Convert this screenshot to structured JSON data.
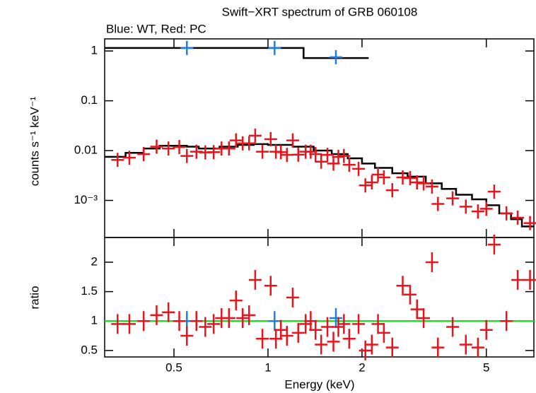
{
  "chart_data": [
    {
      "type": "spectrum",
      "title": "Swift−XRT spectrum of GRB 060108",
      "subtitle": "Blue: WT, Red: PC",
      "y_label": "counts s⁻¹ keV⁻¹",
      "log_x": true,
      "log_y": true,
      "ylim": [
        0.00018,
        1.75
      ],
      "yticks": [
        1,
        0.1,
        0.01,
        {
          "value": 0.001,
          "label": "10⁻³"
        }
      ],
      "series": [
        {
          "color": "#1f7fe0",
          "x": [
            0.55,
            1.05,
            1.65
          ],
          "values": [
            1.15,
            1.15,
            0.75
          ]
        },
        {
          "color": "#e8141c",
          "x": [
            0.33,
            0.36,
            0.4,
            0.44,
            0.48,
            0.52,
            0.55,
            0.59,
            0.63,
            0.67,
            0.71,
            0.75,
            0.79,
            0.83,
            0.87,
            0.91,
            0.96,
            1.02,
            1.06,
            1.1,
            1.15,
            1.2,
            1.25,
            1.32,
            1.37,
            1.42,
            1.48,
            1.55,
            1.62,
            1.68,
            1.75,
            1.82,
            1.95,
            2.05,
            2.15,
            2.25,
            2.35,
            2.5,
            2.7,
            2.85,
            3.0,
            3.15,
            3.35,
            3.5,
            3.9,
            4.3,
            4.7,
            5.0,
            5.3,
            5.8,
            6.3,
            6.9
          ],
          "values": [
            0.0065,
            0.0072,
            0.0085,
            0.012,
            0.011,
            0.0118,
            0.0078,
            0.0095,
            0.0092,
            0.0093,
            0.011,
            0.011,
            0.016,
            0.014,
            0.014,
            0.02,
            0.0095,
            0.017,
            0.0095,
            0.0093,
            0.0082,
            0.016,
            0.0083,
            0.0095,
            0.0095,
            0.0085,
            0.006,
            0.0082,
            0.0055,
            0.0075,
            0.0078,
            0.0052,
            0.0043,
            0.002,
            0.0023,
            0.0033,
            0.0029,
            0.0016,
            0.0029,
            0.0028,
            0.0023,
            0.0022,
            0.0019,
            0.00085,
            0.0011,
            0.00075,
            0.0006,
            0.00068,
            0.0015,
            0.00055,
            0.00045,
            0.00035
          ]
        }
      ],
      "models": [
        {
          "color": "#000000",
          "bins": [
            0.3,
            1.3,
            2.1
          ],
          "values": [
            1.15,
            0.72
          ]
        },
        {
          "color": "#000000",
          "bins": [
            0.3,
            0.35,
            0.4,
            0.45,
            0.55,
            0.6,
            0.7,
            0.8,
            0.9,
            1.0,
            1.2,
            1.4,
            1.6,
            1.8,
            2.0,
            2.2,
            2.5,
            2.8,
            3.2,
            3.6,
            4.0,
            4.5,
            5.0,
            5.5,
            6.0,
            6.5,
            7.1
          ],
          "values": [
            0.0075,
            0.009,
            0.011,
            0.0125,
            0.012,
            0.011,
            0.012,
            0.013,
            0.0135,
            0.013,
            0.012,
            0.01,
            0.0085,
            0.007,
            0.0055,
            0.0045,
            0.0035,
            0.003,
            0.0022,
            0.0017,
            0.0013,
            0.00105,
            0.0008,
            0.00055,
            0.00042,
            0.0003
          ]
        }
      ]
    },
    {
      "type": "ratio",
      "y_label": "ratio",
      "x_label": "Energy (keV)",
      "log_x": true,
      "xlim": [
        0.3,
        7.1
      ],
      "xticks": [
        0.5,
        1,
        2,
        5
      ],
      "ylim": [
        0.39,
        2.42
      ],
      "yticks": [
        0.5,
        1,
        1.5,
        2
      ],
      "reference": {
        "value": 1,
        "color": "#22dd22"
      },
      "series": [
        {
          "color": "#1f7fe0",
          "x": [
            0.55,
            1.05,
            1.65
          ],
          "values": [
            1.0,
            1.0,
            1.05
          ]
        },
        {
          "color": "#e8141c",
          "x": [
            0.33,
            0.36,
            0.4,
            0.44,
            0.48,
            0.52,
            0.55,
            0.59,
            0.63,
            0.67,
            0.71,
            0.75,
            0.79,
            0.83,
            0.87,
            0.91,
            0.96,
            1.02,
            1.06,
            1.1,
            1.15,
            1.2,
            1.25,
            1.32,
            1.37,
            1.42,
            1.48,
            1.55,
            1.62,
            1.68,
            1.75,
            1.82,
            1.95,
            2.05,
            2.15,
            2.25,
            2.35,
            2.5,
            2.7,
            2.85,
            3.0,
            3.15,
            3.35,
            3.5,
            3.9,
            4.3,
            4.7,
            5.0,
            5.3,
            5.8,
            6.3,
            6.9
          ],
          "values": [
            0.95,
            0.95,
            1.0,
            1.1,
            1.15,
            1.0,
            0.75,
            1.0,
            0.9,
            0.95,
            1.05,
            1.05,
            1.35,
            1.05,
            1.1,
            1.7,
            0.7,
            1.6,
            0.7,
            0.85,
            0.75,
            1.4,
            0.8,
            0.95,
            1.0,
            0.85,
            0.6,
            0.9,
            0.65,
            0.9,
            0.95,
            0.7,
            0.95,
            0.5,
            0.6,
            0.95,
            0.8,
            0.55,
            1.6,
            1.45,
            1.2,
            1.05,
            2.0,
            0.55,
            0.9,
            0.6,
            0.55,
            0.85,
            2.3,
            1.0,
            1.7,
            1.7
          ]
        }
      ]
    }
  ]
}
